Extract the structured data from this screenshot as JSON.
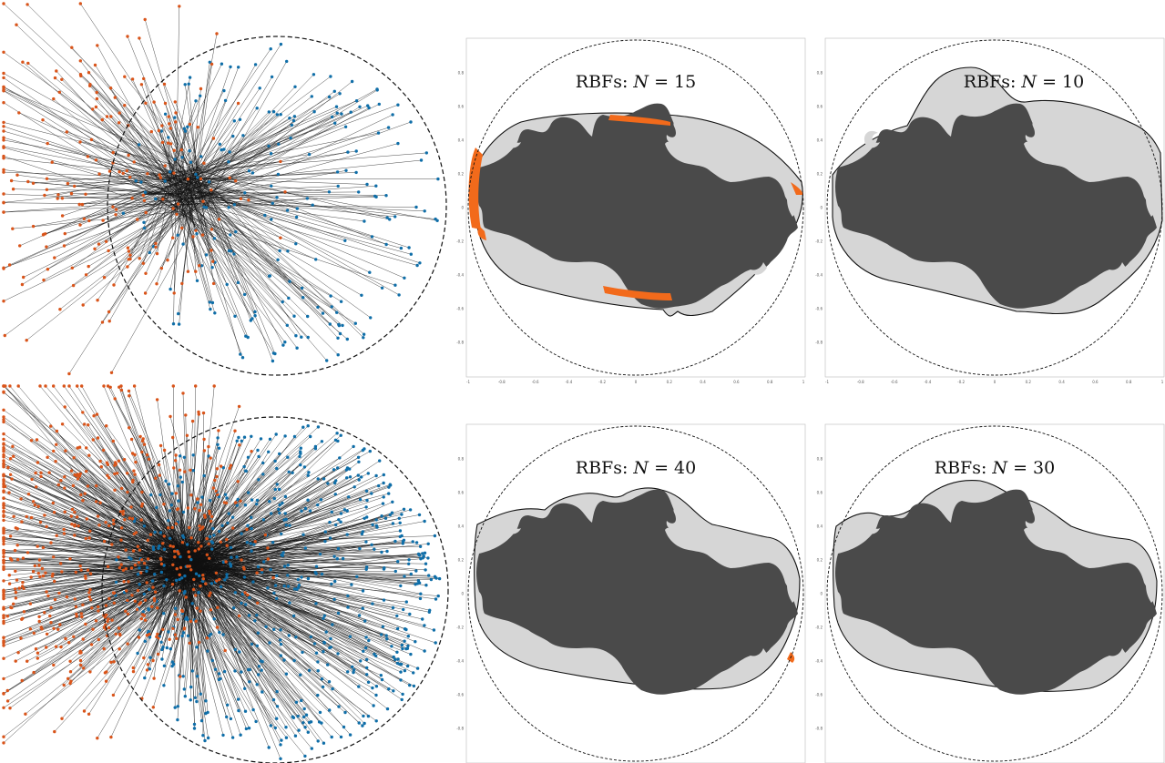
{
  "colors": {
    "source_points": "#d9541a",
    "target_points": "#0f6ea8",
    "connection_lines": "#111111",
    "domain_fill": "#4a4a4a",
    "region_fill": "#d6d6d6",
    "error_fill": "#f26a1b",
    "circle_stroke": "#111111"
  },
  "panels": {
    "top_left_plot": {
      "prefix": "RBFs:",
      "symbol": "N",
      "equals": "=",
      "value": "15"
    },
    "top_right_plot": {
      "prefix": "RBFs:",
      "symbol": "N",
      "equals": "=",
      "value": "10"
    },
    "bottom_left_plot": {
      "prefix": "RBFs:",
      "symbol": "N",
      "equals": "=",
      "value": "40"
    },
    "bottom_right_plot": {
      "prefix": "RBFs:",
      "symbol": "N",
      "equals": "=",
      "value": "30"
    }
  },
  "axes": {
    "x_ticks": [
      "-1",
      "-0.8",
      "-0.6",
      "-0.4",
      "-0.2",
      "0",
      "0.2",
      "0.4",
      "0.6",
      "0.8",
      "1"
    ],
    "y_ticks": [
      "0.8",
      "0.6",
      "0.4",
      "0.2",
      "0",
      "-0.2",
      "-0.4",
      "-0.6",
      "-0.8"
    ]
  },
  "scatter": {
    "top": {
      "pairs": 230
    },
    "bottom": {
      "pairs": 650
    }
  }
}
